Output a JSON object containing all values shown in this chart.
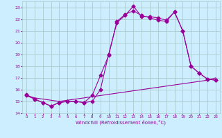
{
  "xlabel": "Windchill (Refroidissement éolien,°C)",
  "bg_color": "#cceeff",
  "grid_color": "#aacccc",
  "line_color": "#990099",
  "xlim": [
    -0.5,
    23.5
  ],
  "ylim": [
    14,
    23.5
  ],
  "xticks": [
    0,
    1,
    2,
    3,
    4,
    5,
    6,
    7,
    8,
    9,
    10,
    11,
    12,
    13,
    14,
    15,
    16,
    17,
    18,
    19,
    20,
    21,
    22,
    23
  ],
  "yticks": [
    14,
    15,
    16,
    17,
    18,
    19,
    20,
    21,
    22,
    23
  ],
  "series1_x": [
    0,
    1,
    2,
    3,
    4,
    5,
    6,
    7,
    8,
    9,
    10,
    11,
    12,
    13,
    14,
    15,
    16,
    17,
    18,
    19,
    20,
    21,
    22,
    23
  ],
  "series1_y": [
    15.6,
    15.2,
    14.9,
    14.6,
    14.9,
    15.0,
    15.0,
    14.9,
    15.0,
    16.0,
    19.0,
    21.7,
    22.3,
    23.1,
    22.2,
    22.2,
    22.1,
    21.9,
    22.6,
    21.0,
    18.0,
    17.4,
    16.9,
    16.8
  ],
  "series2_x": [
    0,
    1,
    2,
    3,
    4,
    5,
    6,
    7,
    8,
    9,
    10,
    11,
    12,
    13,
    14,
    15,
    16,
    17,
    18,
    19,
    20,
    21,
    22,
    23
  ],
  "series2_y": [
    15.5,
    15.2,
    14.9,
    14.6,
    14.9,
    15.0,
    15.0,
    14.9,
    15.5,
    17.2,
    18.9,
    21.8,
    22.4,
    22.7,
    22.3,
    22.1,
    21.9,
    21.8,
    22.6,
    21.0,
    18.0,
    17.4,
    16.9,
    16.8
  ],
  "series3_x": [
    0,
    1,
    2,
    3,
    4,
    5,
    6,
    7,
    8,
    9,
    10,
    11,
    12,
    13,
    14,
    15,
    16,
    17,
    18,
    19,
    20,
    21,
    22,
    23
  ],
  "series3_y": [
    15.5,
    15.3,
    15.2,
    15.1,
    15.0,
    15.1,
    15.2,
    15.3,
    15.4,
    15.5,
    15.6,
    15.7,
    15.8,
    15.9,
    16.0,
    16.1,
    16.2,
    16.3,
    16.4,
    16.5,
    16.6,
    16.7,
    16.8,
    17.0
  ],
  "marker": "D",
  "markersize": 2.5
}
